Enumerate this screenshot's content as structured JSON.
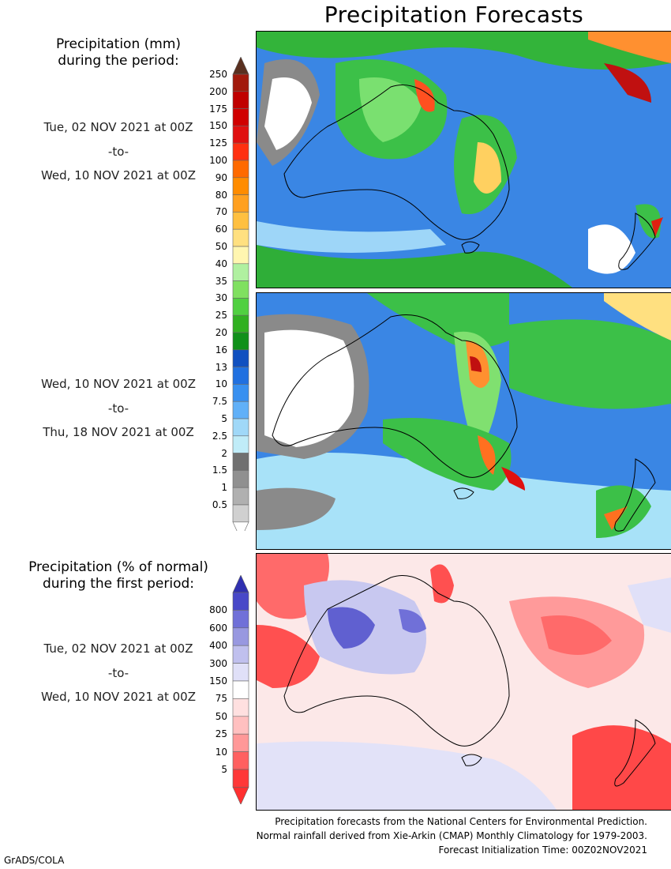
{
  "title": "Precipitation Forecasts",
  "legend1": {
    "header_line1": "Precipitation (mm)",
    "header_line2": "during the period:",
    "labels": [
      "250",
      "200",
      "175",
      "150",
      "125",
      "100",
      "90",
      "80",
      "70",
      "60",
      "50",
      "40",
      "35",
      "30",
      "25",
      "20",
      "16",
      "13",
      "10",
      "7.5",
      "5",
      "2.5",
      "2",
      "1.5",
      "1",
      "0.5"
    ],
    "colors": [
      "#a21a0c",
      "#c00000",
      "#d00000",
      "#e01010",
      "#ff3010",
      "#ff6a00",
      "#ff8c00",
      "#ffa020",
      "#ffc040",
      "#ffe080",
      "#fff6b0",
      "#b0f0a0",
      "#80e060",
      "#50d040",
      "#30b020",
      "#10901a",
      "#1050c0",
      "#2070e0",
      "#3890f0",
      "#60b0f8",
      "#a0d8f8",
      "#c0ecf8",
      "#707070",
      "#909090",
      "#b0b0b0",
      "#d0d0d0"
    ],
    "top_arrow_color": "#5a3020"
  },
  "period1": {
    "start": "Tue, 02 NOV 2021 at 00Z",
    "sep": "-to-",
    "end": "Wed, 10 NOV 2021 at 00Z"
  },
  "period2": {
    "start": "Wed, 10 NOV 2021 at 00Z",
    "sep": "-to-",
    "end": "Thu, 18 NOV 2021 at 00Z"
  },
  "legend2": {
    "header_line1": "Precipitation (% of normal)",
    "header_line2": "during the first period:",
    "labels": [
      "800",
      "600",
      "400",
      "300",
      "150",
      "75",
      "50",
      "25",
      "10",
      "5"
    ],
    "colors": [
      "#4848c8",
      "#7070d8",
      "#9898e0",
      "#c0c0ee",
      "#e0e0f8",
      "#ffffff",
      "#ffe0e0",
      "#ffc0c0",
      "#ff9898",
      "#ff6060",
      "#ff3838"
    ],
    "top_arrow_color": "#3030b0",
    "bottom_arrow_color": "#ff3030"
  },
  "period3": {
    "start": "Tue, 02 NOV 2021 at 00Z",
    "sep": "-to-",
    "end": "Wed, 10 NOV 2021 at 00Z"
  },
  "footer": {
    "line1": "Precipitation forecasts from the National Centers for Environmental Prediction.",
    "line2": "Normal rainfall derived from Xie-Arkin (CMAP) Monthly Climatology for 1979-2003.",
    "line3": "Forecast Initialization Time: 00Z02NOV2021",
    "credit": "GrADS/COLA"
  }
}
